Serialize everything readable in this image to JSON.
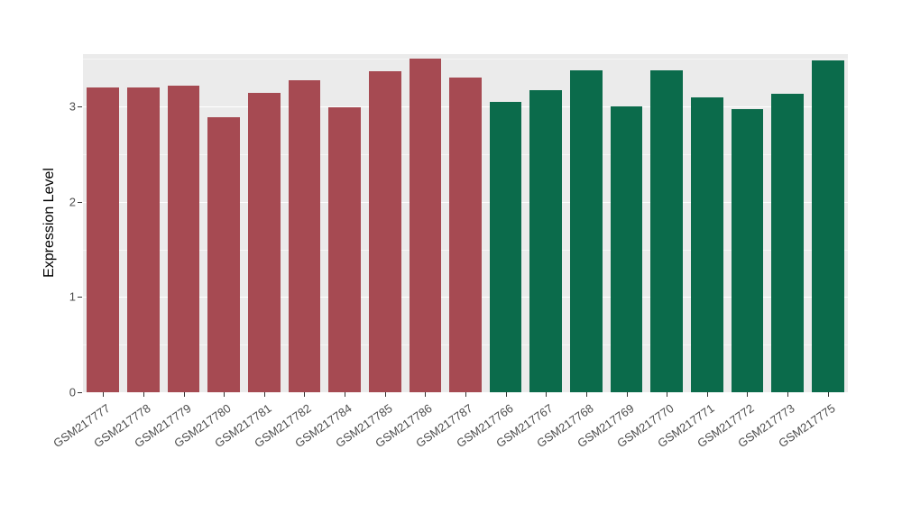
{
  "chart_data": {
    "type": "bar",
    "title": "",
    "xlabel": "",
    "ylabel": "Expression Level",
    "ylim": [
      0,
      3.55
    ],
    "yticks": [
      0,
      1,
      2,
      3
    ],
    "yticks_minor": [
      0.5,
      1.5,
      2.5,
      3.5
    ],
    "grid": "on",
    "legend_position": "none",
    "panel_background": "#EBEBEB",
    "grid_color": "#FFFFFF",
    "axis_text_color": "#4D4D4D",
    "tick_mark_color": "#333333",
    "categories": [
      "GSM217777",
      "GSM217778",
      "GSM217779",
      "GSM217780",
      "GSM217781",
      "GSM217782",
      "GSM217784",
      "GSM217785",
      "GSM217786",
      "GSM217787",
      "GSM217766",
      "GSM217767",
      "GSM217768",
      "GSM217769",
      "GSM217770",
      "GSM217771",
      "GSM217772",
      "GSM217773",
      "GSM217775"
    ],
    "values": [
      3.2,
      3.2,
      3.22,
      2.89,
      3.14,
      3.28,
      2.99,
      3.37,
      3.5,
      3.3,
      3.05,
      3.17,
      3.38,
      3.0,
      3.38,
      3.1,
      2.97,
      3.13,
      3.48
    ],
    "groups": [
      "red",
      "red",
      "red",
      "red",
      "red",
      "red",
      "red",
      "red",
      "red",
      "red",
      "green",
      "green",
      "green",
      "green",
      "green",
      "green",
      "green",
      "green",
      "green"
    ],
    "group_colors": {
      "red": "#A64A52",
      "green": "#0B6B4B"
    }
  }
}
